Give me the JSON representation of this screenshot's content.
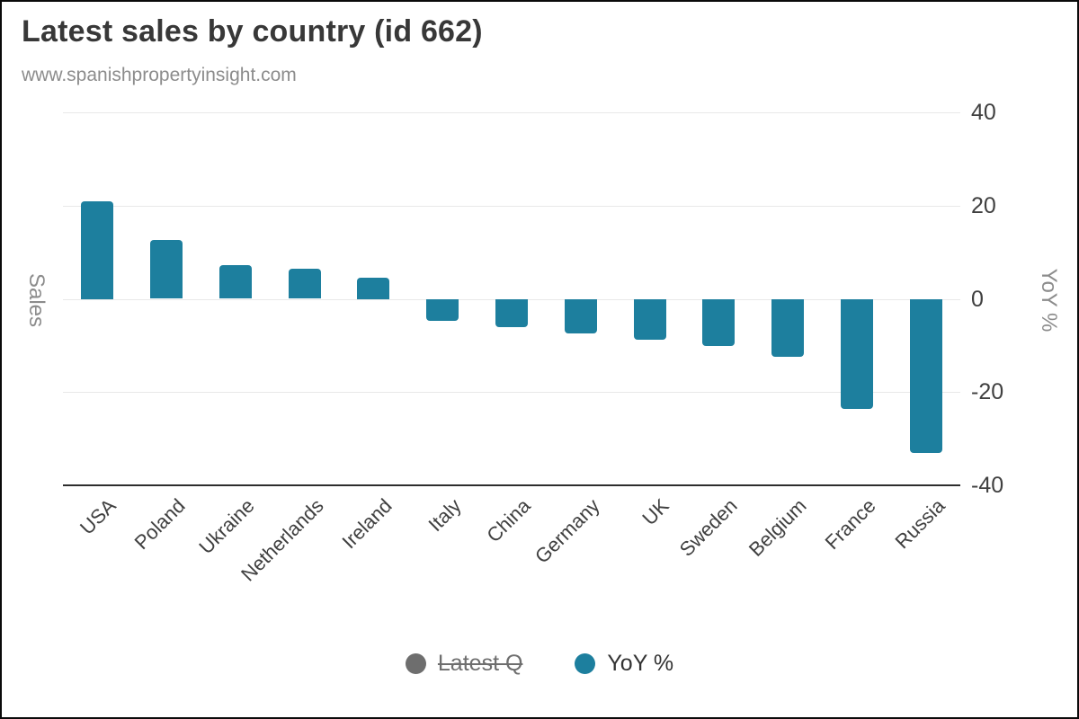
{
  "header": {
    "title": "Latest sales by country (id 662)",
    "subtitle": "www.spanishpropertyinsight.com"
  },
  "chart_data": {
    "type": "bar",
    "title": "Latest sales by country (id 662)",
    "subtitle": "www.spanishpropertyinsight.com",
    "categories": [
      "USA",
      "Poland",
      "Ukraine",
      "Netherlands",
      "Ireland",
      "Italy",
      "China",
      "Germany",
      "UK",
      "Sweden",
      "Belgium",
      "France",
      "Russia"
    ],
    "series": [
      {
        "name": "Latest Q",
        "color": "#6e6e6e",
        "visible": false
      },
      {
        "name": "YoY %",
        "color": "#1d7f9e",
        "visible": true,
        "values": [
          21,
          12.7,
          7.2,
          6.4,
          4.5,
          -4.7,
          -6.1,
          -7.4,
          -8.7,
          -10.1,
          -12.4,
          -23.6,
          -33
        ]
      }
    ],
    "y_axis_left_title": "Sales",
    "y_axis_right_title": "YoY %",
    "yticks": [
      40,
      20,
      0,
      -20,
      -40
    ],
    "ylim": [
      -40,
      40
    ],
    "grid": true,
    "legend_position": "bottom"
  },
  "colors": {
    "bar": "#1d7f9e",
    "disabled_series": "#6e6e6e",
    "grid_line": "#e8e8e8",
    "axis_line": "#2d2d2d",
    "title_text": "#383838",
    "subtitle_text": "#8c8c8c",
    "tick_text": "#404040",
    "axis_title_text": "#8c8c8c",
    "frame_border": "#0a0a0a"
  }
}
